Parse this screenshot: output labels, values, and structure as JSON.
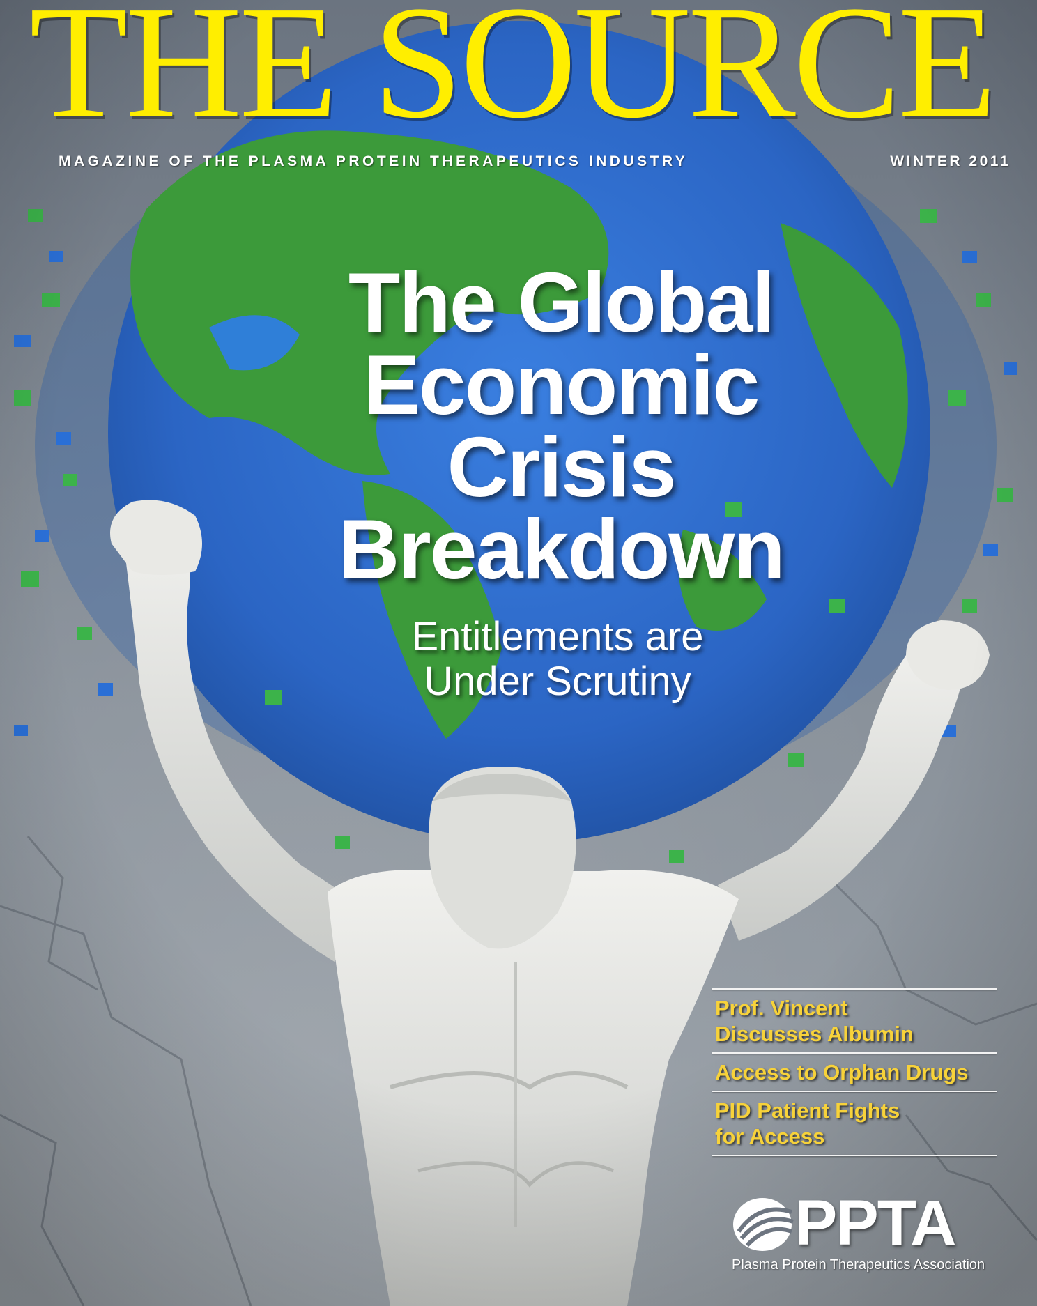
{
  "masthead": {
    "title": "THE SOURCE",
    "tagline": "MAGAZINE OF THE PLASMA PROTEIN THERAPEUTICS INDUSTRY",
    "issue": "WINTER 2011"
  },
  "cover_story": {
    "headline_lines": [
      "The Global",
      "Economic",
      "Crisis",
      "Breakdown"
    ],
    "subhead_lines": [
      "Entitlements are",
      "Under Scrutiny"
    ]
  },
  "teasers": [
    {
      "lines": [
        "Prof. Vincent",
        "Discusses Albumin"
      ]
    },
    {
      "lines": [
        "Access to Orphan Drugs"
      ]
    },
    {
      "lines": [
        "PID Patient Fights",
        "for Access"
      ]
    }
  ],
  "publisher": {
    "logo_word": "PPTA",
    "logo_sub": "Plasma Protein Therapeutics Association"
  },
  "colors": {
    "masthead": "#ffee00",
    "teaser_text": "#f7d23a",
    "globe_ocean": "#2f6fcf",
    "globe_land": "#3fa040",
    "statue": "#e7e7e3",
    "marble": "#8a929b"
  },
  "illustration": {
    "subject": "marble statue of Atlas holding up a pixelated globe",
    "icons": [
      "globe-illustration",
      "atlas-statue-illustration",
      "ppta-logo-icon"
    ]
  }
}
